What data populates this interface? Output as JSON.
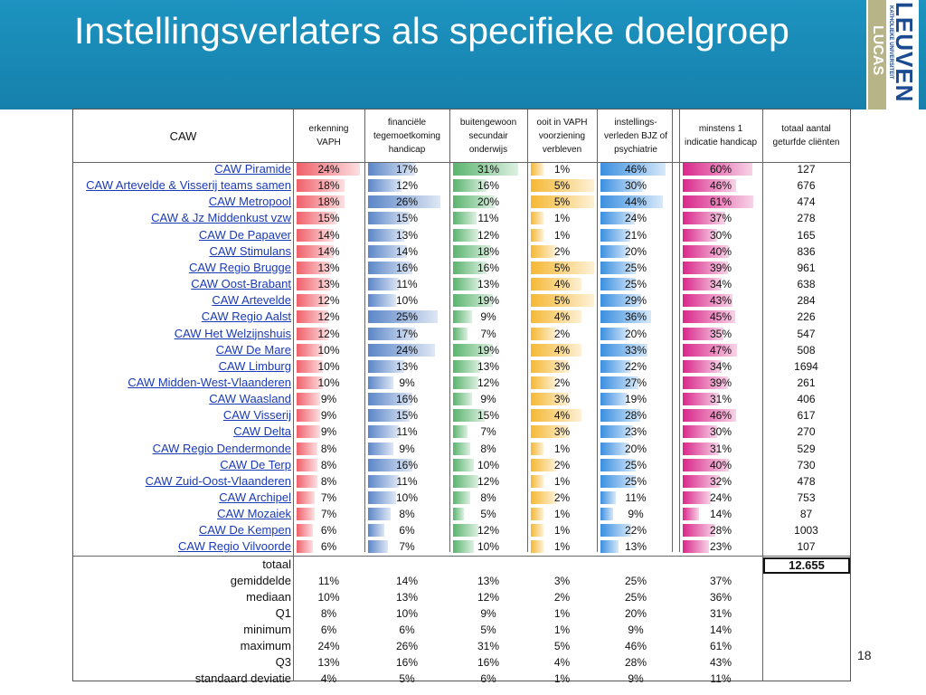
{
  "slide": {
    "title": "Instellingsverlaters als specifieke doelgroep",
    "page_number": "18",
    "logo": {
      "brand": "LEUVEN",
      "subtitle": "KATHOLIEKE UNIVERSITEIT",
      "lucas": "LUCAS"
    }
  },
  "colors": {
    "banner": "#1a8ab5",
    "bar_erkenning": "#f0606a",
    "bar_financieel": "#5b86c8",
    "bar_buitengewoon": "#5ab46e",
    "bar_vaph": "#f5b834",
    "bar_bjz": "#3a8fe0",
    "bar_indicatie": "#d9278a"
  },
  "table": {
    "headers": [
      "CAW",
      "erkenning\nVAPH",
      "financiële\ntegemoetkoming\nhandicap",
      "buitengewoon\nsecundair\nonderwijs",
      "ooit in VAPH\nvoorziening\nverbleven",
      "instellings-\nverleden BJZ of\npsychiatrie",
      "minstens 1\nindicatie handicap",
      "totaal aantal\ngeturfde cliënten"
    ],
    "rows": [
      {
        "name": "CAW Piramide",
        "values": [
          "24%",
          "17%",
          "31%",
          "1%",
          "46%",
          "60%"
        ],
        "total": "127"
      },
      {
        "name": "CAW Artevelde & Visserij teams samen",
        "values": [
          "18%",
          "12%",
          "16%",
          "5%",
          "30%",
          "46%"
        ],
        "total": "676"
      },
      {
        "name": "CAW Metropool",
        "values": [
          "18%",
          "26%",
          "20%",
          "5%",
          "44%",
          "61%"
        ],
        "total": "474"
      },
      {
        "name": "CAW & Jz Middenkust vzw",
        "values": [
          "15%",
          "15%",
          "11%",
          "1%",
          "24%",
          "37%"
        ],
        "total": "278"
      },
      {
        "name": "CAW De Papaver",
        "values": [
          "14%",
          "13%",
          "12%",
          "1%",
          "21%",
          "30%"
        ],
        "total": "165"
      },
      {
        "name": "CAW Stimulans",
        "values": [
          "14%",
          "14%",
          "18%",
          "2%",
          "20%",
          "40%"
        ],
        "total": "836"
      },
      {
        "name": "CAW Regio Brugge",
        "values": [
          "13%",
          "16%",
          "16%",
          "5%",
          "25%",
          "39%"
        ],
        "total": "961"
      },
      {
        "name": "CAW Oost-Brabant",
        "values": [
          "13%",
          "11%",
          "13%",
          "4%",
          "25%",
          "34%"
        ],
        "total": "638"
      },
      {
        "name": "CAW Artevelde",
        "values": [
          "12%",
          "10%",
          "19%",
          "5%",
          "29%",
          "43%"
        ],
        "total": "284"
      },
      {
        "name": "CAW Regio Aalst",
        "values": [
          "12%",
          "25%",
          "9%",
          "4%",
          "36%",
          "45%"
        ],
        "total": "226"
      },
      {
        "name": "CAW Het Welzijnshuis",
        "values": [
          "12%",
          "17%",
          "7%",
          "2%",
          "20%",
          "35%"
        ],
        "total": "547"
      },
      {
        "name": "CAW De Mare",
        "values": [
          "10%",
          "24%",
          "19%",
          "4%",
          "33%",
          "47%"
        ],
        "total": "508"
      },
      {
        "name": "CAW Limburg",
        "values": [
          "10%",
          "13%",
          "13%",
          "3%",
          "22%",
          "34%"
        ],
        "total": "1694"
      },
      {
        "name": "CAW Midden-West-Vlaanderen",
        "values": [
          "10%",
          "9%",
          "12%",
          "2%",
          "27%",
          "39%"
        ],
        "total": "261"
      },
      {
        "name": "CAW Waasland",
        "values": [
          "9%",
          "16%",
          "9%",
          "3%",
          "19%",
          "31%"
        ],
        "total": "406"
      },
      {
        "name": "CAW Visserij",
        "values": [
          "9%",
          "15%",
          "15%",
          "4%",
          "28%",
          "46%"
        ],
        "total": "617"
      },
      {
        "name": "CAW Delta",
        "values": [
          "9%",
          "11%",
          "7%",
          "3%",
          "23%",
          "30%"
        ],
        "total": "270"
      },
      {
        "name": "CAW Regio Dendermonde",
        "values": [
          "8%",
          "9%",
          "8%",
          "1%",
          "20%",
          "31%"
        ],
        "total": "529"
      },
      {
        "name": "CAW De Terp",
        "values": [
          "8%",
          "16%",
          "10%",
          "2%",
          "25%",
          "40%"
        ],
        "total": "730"
      },
      {
        "name": "CAW Zuid-Oost-Vlaanderen",
        "values": [
          "8%",
          "11%",
          "12%",
          "1%",
          "25%",
          "32%"
        ],
        "total": "478"
      },
      {
        "name": "CAW Archipel",
        "values": [
          "7%",
          "10%",
          "8%",
          "2%",
          "11%",
          "24%"
        ],
        "total": "753"
      },
      {
        "name": "CAW Mozaiek",
        "values": [
          "7%",
          "8%",
          "5%",
          "1%",
          "9%",
          "14%"
        ],
        "total": "87"
      },
      {
        "name": "CAW De Kempen",
        "values": [
          "6%",
          "6%",
          "12%",
          "1%",
          "22%",
          "28%"
        ],
        "total": "1003"
      },
      {
        "name": "CAW Regio Vilvoorde",
        "values": [
          "6%",
          "7%",
          "10%",
          "1%",
          "13%",
          "23%"
        ],
        "total": "107"
      }
    ],
    "totaal_label": "totaal",
    "totaal_value": "12.655",
    "stats": [
      {
        "label": "gemiddelde",
        "values": [
          "11%",
          "14%",
          "13%",
          "3%",
          "25%",
          "37%"
        ]
      },
      {
        "label": "mediaan",
        "values": [
          "10%",
          "13%",
          "12%",
          "2%",
          "25%",
          "36%"
        ]
      },
      {
        "label": "Q1",
        "values": [
          "8%",
          "10%",
          "9%",
          "1%",
          "20%",
          "31%"
        ]
      },
      {
        "label": "minimum",
        "values": [
          "6%",
          "6%",
          "5%",
          "1%",
          "9%",
          "14%"
        ]
      },
      {
        "label": "maximum",
        "values": [
          "24%",
          "26%",
          "31%",
          "5%",
          "46%",
          "61%"
        ]
      },
      {
        "label": "Q3",
        "values": [
          "13%",
          "16%",
          "16%",
          "4%",
          "28%",
          "43%"
        ]
      },
      {
        "label": "standaard deviatie",
        "values": [
          "4%",
          "5%",
          "6%",
          "1%",
          "9%",
          "11%"
        ]
      }
    ]
  }
}
